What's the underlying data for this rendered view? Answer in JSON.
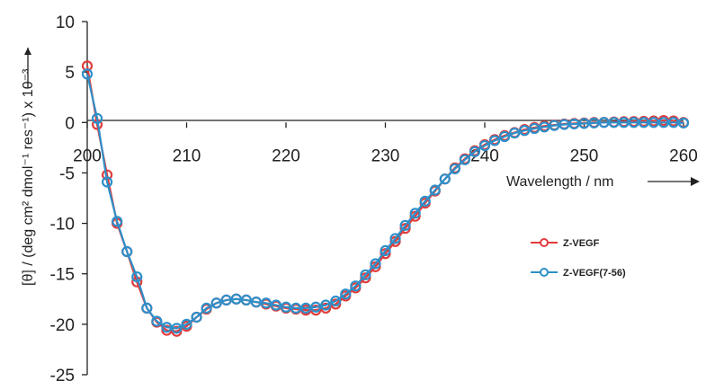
{
  "chart_data": {
    "type": "line",
    "xlabel": "Wavelength / nm",
    "ylabel": "[θ] / (deg cm² dmol⁻¹ res⁻¹) x 10⁻³",
    "xlim": [
      200,
      260
    ],
    "ylim": [
      -25,
      10
    ],
    "x_ticks": [
      "200",
      "210",
      "220",
      "230",
      "240",
      "250",
      "260"
    ],
    "y_ticks": [
      "10",
      "5",
      "0",
      "-5",
      "-10",
      "-15",
      "-20",
      "-25"
    ],
    "grid": false,
    "legend_position": "right",
    "x": [
      200,
      201,
      202,
      203,
      204,
      205,
      206,
      207,
      208,
      209,
      210,
      211,
      212,
      213,
      214,
      215,
      216,
      217,
      218,
      219,
      220,
      221,
      222,
      223,
      224,
      225,
      226,
      227,
      228,
      229,
      230,
      231,
      232,
      233,
      234,
      235,
      236,
      237,
      238,
      239,
      240,
      241,
      242,
      243,
      244,
      245,
      246,
      247,
      248,
      249,
      250,
      251,
      252,
      253,
      254,
      255,
      256,
      257,
      258,
      259,
      260
    ],
    "series": [
      {
        "name": "Z-VEGF",
        "color": "#e03c3c",
        "marker": "circle",
        "values": [
          5.6,
          -0.2,
          -5.2,
          -10.0,
          -12.8,
          -15.8,
          -18.4,
          -19.8,
          -20.6,
          -20.7,
          -20.2,
          -19.3,
          -18.5,
          -17.9,
          -17.6,
          -17.5,
          -17.6,
          -17.8,
          -18.0,
          -18.2,
          -18.4,
          -18.5,
          -18.6,
          -18.6,
          -18.4,
          -18.0,
          -17.2,
          -16.4,
          -15.4,
          -14.3,
          -13.0,
          -11.8,
          -10.5,
          -9.3,
          -8.0,
          -6.8,
          -5.6,
          -4.5,
          -3.6,
          -2.8,
          -2.2,
          -1.7,
          -1.3,
          -1.0,
          -0.7,
          -0.5,
          -0.35,
          -0.25,
          -0.15,
          -0.1,
          -0.05,
          0.0,
          0.02,
          0.05,
          0.08,
          0.1,
          0.12,
          0.15,
          0.2,
          0.15,
          0.0
        ]
      },
      {
        "name": "Z-VEGF(7-56)",
        "color": "#2e8fc9",
        "marker": "circle",
        "values": [
          4.8,
          0.4,
          -5.9,
          -9.8,
          -12.8,
          -15.3,
          -18.4,
          -19.7,
          -20.3,
          -20.4,
          -20.0,
          -19.3,
          -18.4,
          -17.9,
          -17.6,
          -17.5,
          -17.6,
          -17.8,
          -17.9,
          -18.1,
          -18.3,
          -18.4,
          -18.4,
          -18.3,
          -18.1,
          -17.7,
          -17.0,
          -16.2,
          -15.1,
          -14.0,
          -12.7,
          -11.5,
          -10.2,
          -9.0,
          -7.8,
          -6.7,
          -5.6,
          -4.6,
          -3.7,
          -2.9,
          -2.3,
          -1.8,
          -1.4,
          -1.05,
          -0.8,
          -0.6,
          -0.45,
          -0.3,
          -0.2,
          -0.15,
          -0.1,
          -0.05,
          0.0,
          0.0,
          0.0,
          0.0,
          0.0,
          0.0,
          0.0,
          0.0,
          -0.05
        ]
      }
    ]
  }
}
